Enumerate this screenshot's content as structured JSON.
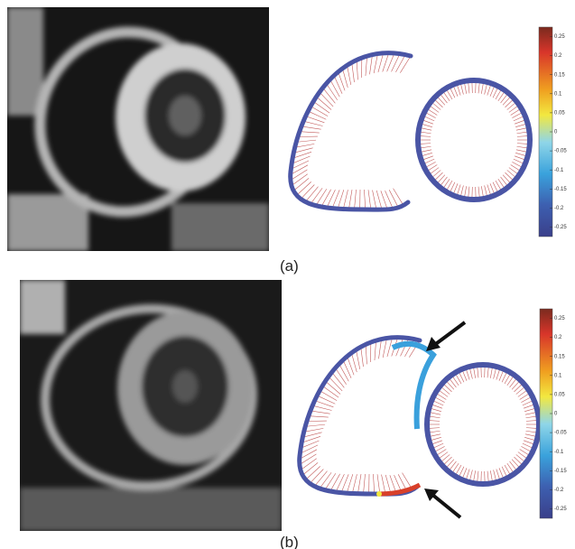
{
  "panels": [
    {
      "label": "(a)",
      "colorbar_ticks": [
        0.25,
        0.2,
        0.15,
        0.1,
        0.05,
        0,
        -0.05,
        -0.1,
        -0.15,
        -0.2,
        -0.25
      ]
    },
    {
      "label": "(b)",
      "colorbar_ticks": [
        0.25,
        0.2,
        0.15,
        0.1,
        0.05,
        0,
        -0.05,
        -0.1,
        -0.15,
        -0.2,
        -0.25
      ]
    }
  ]
}
